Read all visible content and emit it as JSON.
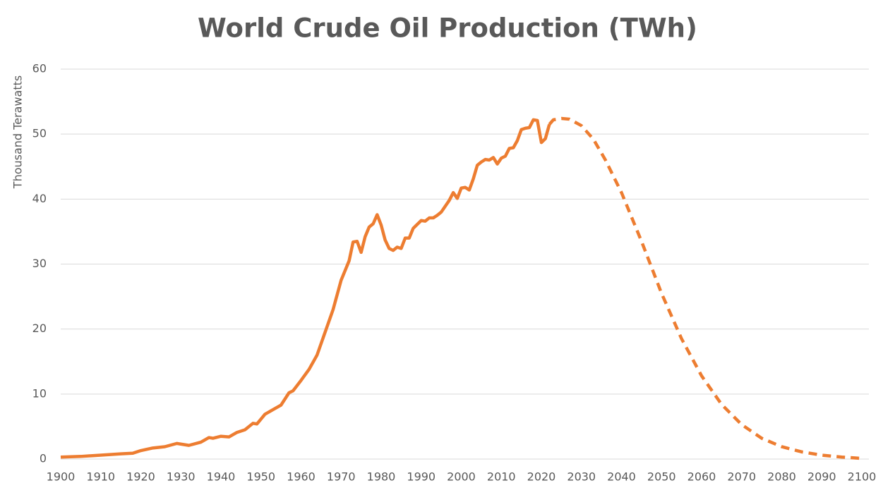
{
  "chart_data": {
    "type": "line",
    "title": "World Crude Oil Production (TWh)",
    "y_label": "Thousand Terawatts",
    "series": [
      {
        "color": "#ed7d31",
        "dashed": false,
        "x": [
          1900,
          1905,
          1910,
          1915,
          1918,
          1920,
          1923,
          1926,
          1929,
          1932,
          1935,
          1937,
          1938,
          1940,
          1942,
          1944,
          1946,
          1948,
          1949,
          1951,
          1953,
          1955,
          1957,
          1958,
          1960,
          1962,
          1964,
          1966,
          1968,
          1970,
          1972,
          1973,
          1974,
          1975,
          1976,
          1977,
          1978,
          1979,
          1980,
          1981,
          1982,
          1983,
          1984,
          1985,
          1986,
          1987,
          1988,
          1989,
          1990,
          1991,
          1992,
          1993,
          1994,
          1995,
          1996,
          1997,
          1998,
          1999,
          2000,
          2001,
          2002,
          2003,
          2004,
          2005,
          2006,
          2007,
          2008,
          2009,
          2010,
          2011,
          2012,
          2013,
          2014,
          2015,
          2016,
          2017,
          2018,
          2019,
          2020,
          2021,
          2022
        ],
        "values": [
          0.3,
          0.4,
          0.6,
          0.8,
          0.9,
          1.3,
          1.7,
          1.9,
          2.4,
          2.1,
          2.6,
          3.3,
          3.2,
          3.5,
          3.4,
          4.1,
          4.5,
          5.5,
          5.4,
          6.9,
          7.6,
          8.3,
          10.2,
          10.5,
          12.1,
          13.8,
          16.0,
          19.5,
          23.0,
          27.5,
          30.5,
          33.4,
          33.5,
          31.8,
          34.2,
          35.7,
          36.2,
          37.6,
          36.0,
          33.7,
          32.4,
          32.1,
          32.6,
          32.4,
          34.0,
          34.0,
          35.5,
          36.1,
          36.7,
          36.6,
          37.1,
          37.1,
          37.5,
          38.0,
          38.9,
          39.8,
          41.0,
          40.1,
          41.7,
          41.8,
          41.4,
          43.1,
          45.2,
          45.7,
          46.1,
          46.0,
          46.4,
          45.4,
          46.3,
          46.6,
          47.8,
          47.9,
          49.0,
          50.7,
          50.9,
          51.0,
          52.2,
          52.1,
          48.7,
          49.3,
          51.5
        ]
      },
      {
        "color": "#ed7d31",
        "dashed": true,
        "x": [
          2022,
          2023,
          2025,
          2027,
          2030,
          2033,
          2036,
          2040,
          2045,
          2050,
          2055,
          2060,
          2065,
          2070,
          2075,
          2080,
          2085,
          2090,
          2095,
          2100
        ],
        "values": [
          51.5,
          52.2,
          52.4,
          52.3,
          51.3,
          49.2,
          46.0,
          41.0,
          33.5,
          25.5,
          18.5,
          12.8,
          8.4,
          5.3,
          3.2,
          1.9,
          1.1,
          0.6,
          0.3,
          0.1
        ]
      }
    ],
    "xlim": [
      1900,
      2100
    ],
    "xticks": [
      1900,
      1910,
      1920,
      1930,
      1940,
      1950,
      1960,
      1970,
      1980,
      1990,
      2000,
      2010,
      2020,
      2030,
      2040,
      2050,
      2060,
      2070,
      2080,
      2090,
      2100
    ],
    "ylim": [
      0,
      60
    ],
    "yticks": [
      0,
      10,
      20,
      30,
      40,
      50,
      60
    ],
    "grid": true
  }
}
